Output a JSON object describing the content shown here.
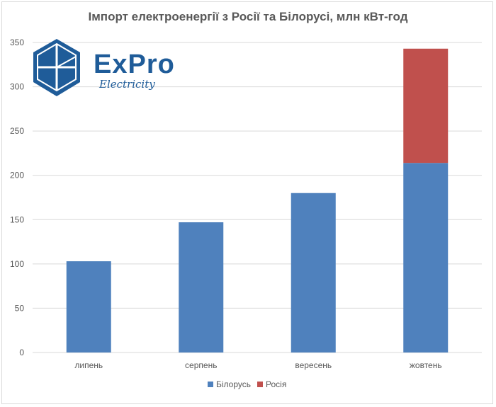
{
  "logo": {
    "brand": "ExPro",
    "sub": "Electricity",
    "color": "#1f5c99"
  },
  "chart_data": {
    "type": "bar",
    "stacked": true,
    "title": "Імпорт електроенергії з Росії та Білорусі, млн кВт-год",
    "xlabel": "",
    "ylabel": "",
    "ylim": [
      0,
      350
    ],
    "yticks": [
      0,
      50,
      100,
      150,
      200,
      250,
      300,
      350
    ],
    "grid": true,
    "legend_position": "bottom",
    "categories": [
      "липень",
      "серпень",
      "вересень",
      "жовтень"
    ],
    "series": [
      {
        "name": "Білорусь",
        "color": "#4f81bd",
        "values": [
          103,
          147,
          180,
          214
        ]
      },
      {
        "name": "Росія",
        "color": "#c0504d",
        "values": [
          0,
          0,
          0,
          129
        ]
      }
    ]
  }
}
